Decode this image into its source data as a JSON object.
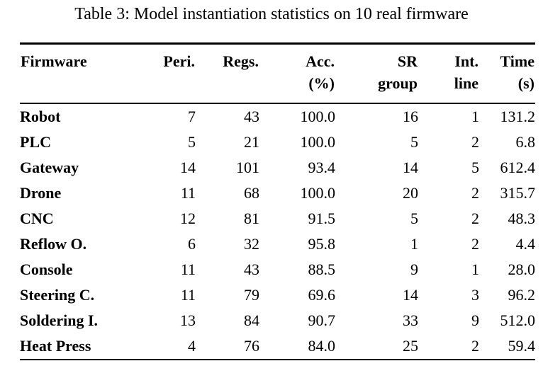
{
  "caption": "Table 3: Model instantiation statistics on 10 real firmware",
  "table": {
    "header_row1": [
      "Firmware",
      "Peri.",
      "Regs.",
      "Acc.",
      "SR",
      "Int.",
      "Time"
    ],
    "header_row2": [
      "",
      "",
      "",
      "(%)",
      "group",
      "line",
      "(s)"
    ],
    "rows": [
      [
        "Robot",
        "7",
        "43",
        "100.0",
        "16",
        "1",
        "131.2"
      ],
      [
        "PLC",
        "5",
        "21",
        "100.0",
        "5",
        "2",
        "6.8"
      ],
      [
        "Gateway",
        "14",
        "101",
        "93.4",
        "14",
        "5",
        "612.4"
      ],
      [
        "Drone",
        "11",
        "68",
        "100.0",
        "20",
        "2",
        "315.7"
      ],
      [
        "CNC",
        "12",
        "81",
        "91.5",
        "5",
        "2",
        "48.3"
      ],
      [
        "Reflow O.",
        "6",
        "32",
        "95.8",
        "1",
        "2",
        "4.4"
      ],
      [
        "Console",
        "11",
        "43",
        "88.5",
        "9",
        "1",
        "28.0"
      ],
      [
        "Steering C.",
        "11",
        "79",
        "69.6",
        "14",
        "3",
        "96.2"
      ],
      [
        "Soldering I.",
        "13",
        "84",
        "90.7",
        "33",
        "9",
        "512.0"
      ],
      [
        "Heat Press",
        "4",
        "76",
        "84.0",
        "25",
        "2",
        "59.4"
      ]
    ],
    "colors": {
      "text": "#000000",
      "background": "#ffffff",
      "rule": "#000000"
    }
  }
}
